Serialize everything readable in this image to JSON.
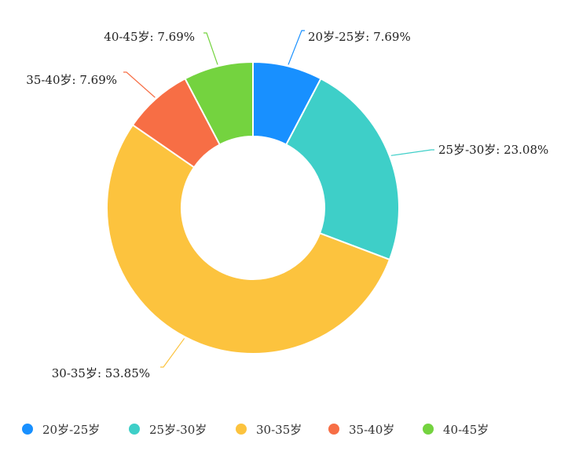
{
  "chart_data": {
    "type": "pie",
    "donut": true,
    "categories": [
      "20岁-25岁",
      "25岁-30岁",
      "30-35岁",
      "35-40岁",
      "40-45岁"
    ],
    "values": [
      7.69,
      23.08,
      53.85,
      7.69,
      7.69
    ],
    "labels": [
      "20岁-25岁: 7.69%",
      "25岁-30岁: 23.08%",
      "30-35岁: 53.85%",
      "35-40岁: 7.69%",
      "40-45岁: 7.69%"
    ],
    "colors": [
      "#1890ff",
      "#3ecfc8",
      "#fcc33e",
      "#f76e45",
      "#74d33f"
    ],
    "legend_position": "bottom",
    "title": ""
  },
  "legend": {
    "items": [
      "20岁-25岁",
      "25岁-30岁",
      "30-35岁",
      "35-40岁",
      "40-45岁"
    ]
  }
}
